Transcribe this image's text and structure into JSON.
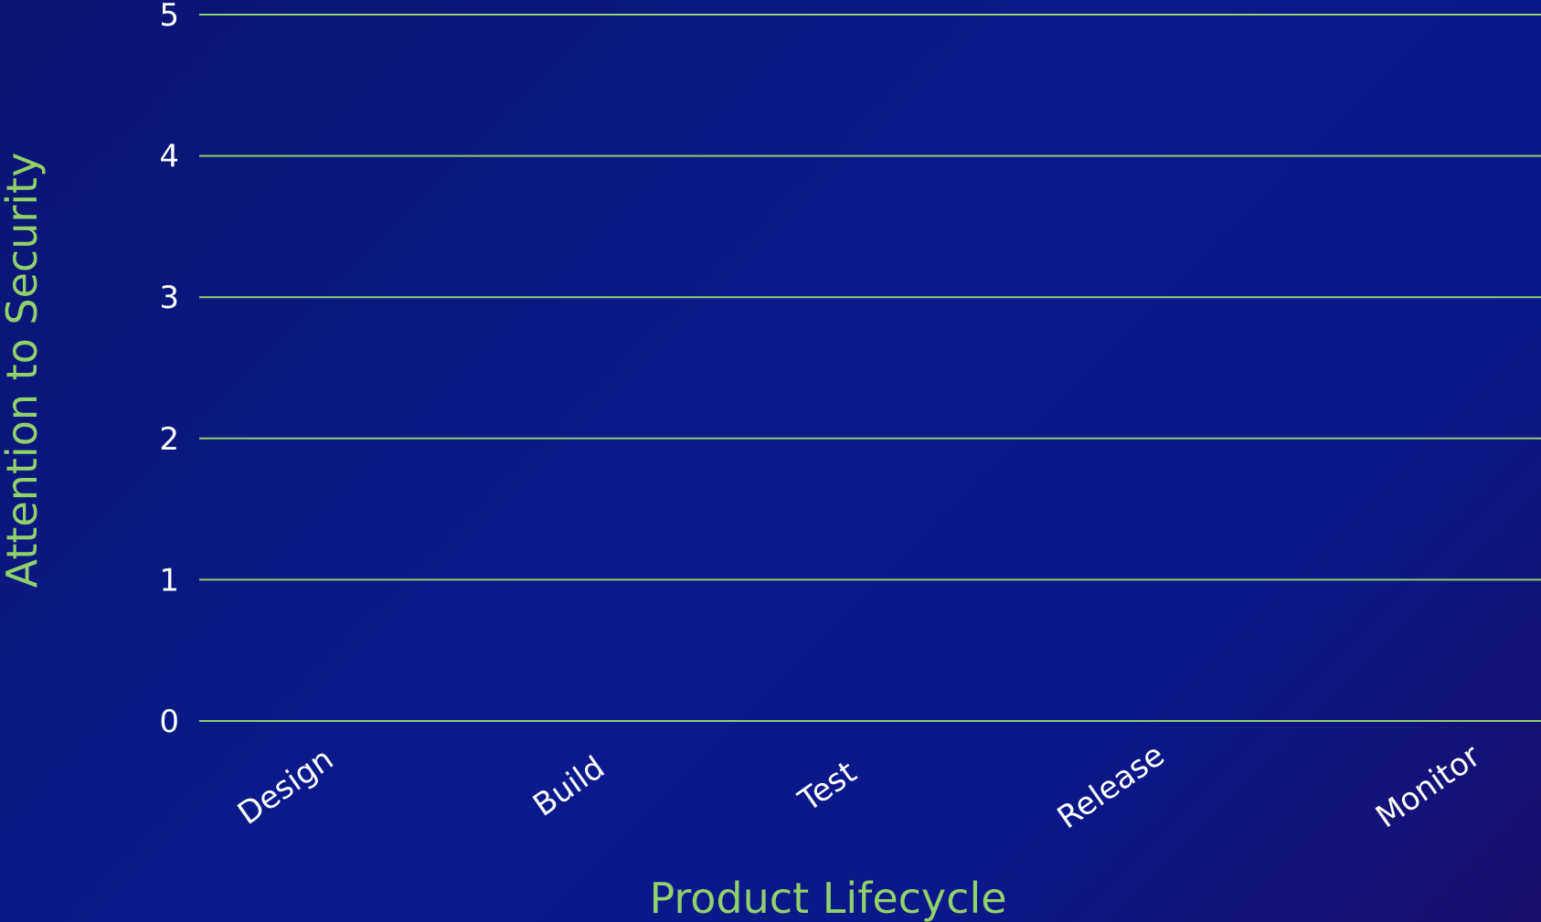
{
  "chart_data": {
    "type": "line",
    "title": "",
    "xlabel": "Product Lifecycle",
    "ylabel": "Attention to Security",
    "categories": [
      "Design",
      "Build",
      "Test",
      "Release",
      "Monitor"
    ],
    "series": [],
    "ylim": [
      0,
      5
    ],
    "yticks": [
      "0",
      "1",
      "2",
      "3",
      "4",
      "5"
    ],
    "grid": true,
    "legend": "none"
  },
  "colors": {
    "grid": "#8fd16a",
    "axis_title": "#8fd16a",
    "tick_text": "#ffffff",
    "background_start": "#0c1470",
    "background_mid": "#0a1a8c",
    "background_end": "#1a0f6a"
  }
}
